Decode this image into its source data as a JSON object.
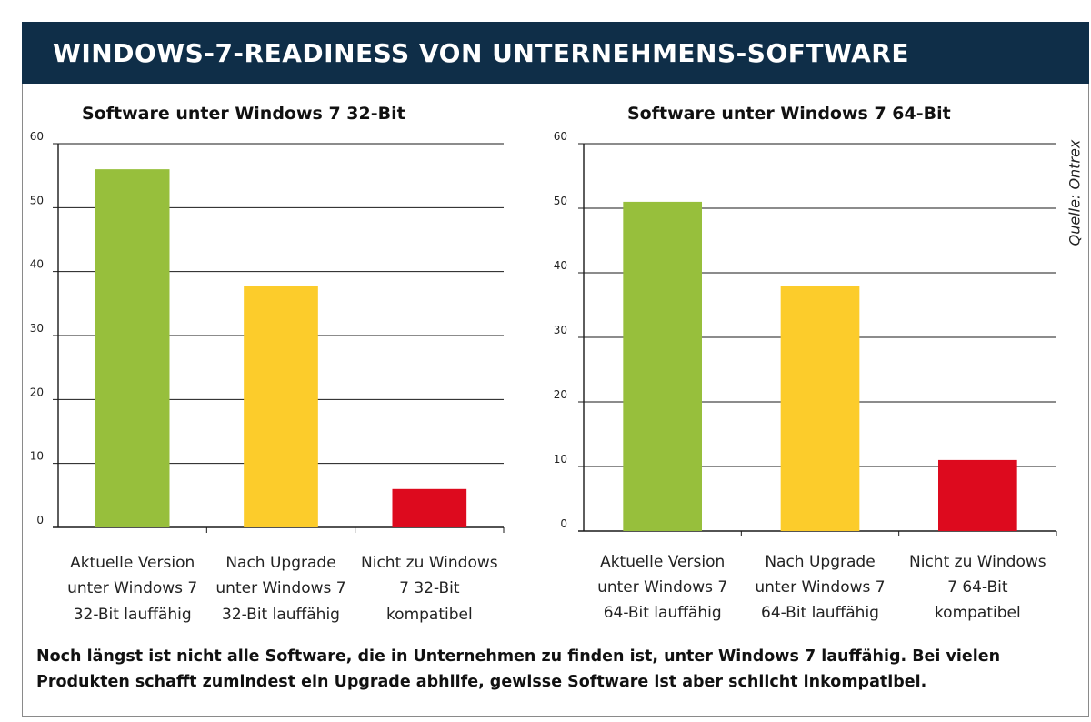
{
  "header": {
    "title": "WINDOWS-7-READINESS VON UNTERNEHMENS-SOFTWARE"
  },
  "source": "Quelle: Ontrex",
  "caption": "Noch längst ist nicht alle Software, die in Unternehmen zu finden ist, unter Windows 7 lauffähig. Bei vielen Produkten schafft zumindest ein Upgrade abhilfe, gewisse Software ist aber schlicht inkompatibel.",
  "colors": {
    "header_bg": "#0f2e48",
    "green": "#97bf3c",
    "yellow": "#fccc2b",
    "red": "#dd0a1e"
  },
  "chart_data": [
    {
      "type": "bar",
      "title": "Software unter Windows 7 32-Bit",
      "categories": [
        [
          "Aktuelle Version",
          "unter Windows 7",
          "32-Bit lauffähig"
        ],
        [
          "Nach Upgrade",
          "unter Windows 7",
          "32-Bit lauffähig"
        ],
        [
          "Nicht zu Windows",
          "7 32-Bit",
          "kompatibel"
        ]
      ],
      "values": [
        56,
        37.7,
        6
      ],
      "bar_colors": [
        "#97bf3c",
        "#fccc2b",
        "#dd0a1e"
      ],
      "ylim": [
        0,
        60
      ],
      "yticks": [
        0,
        10,
        20,
        30,
        40,
        50,
        60
      ],
      "grid": true,
      "xlabel": "",
      "ylabel": ""
    },
    {
      "type": "bar",
      "title": "Software unter Windows 7 64-Bit",
      "categories": [
        [
          "Aktuelle Version",
          "unter Windows 7",
          "64-Bit lauffähig"
        ],
        [
          "Nach Upgrade",
          "unter Windows 7",
          "64-Bit lauffähig"
        ],
        [
          "Nicht zu Windows",
          "7 64-Bit",
          "kompatibel"
        ]
      ],
      "values": [
        51,
        38,
        11
      ],
      "bar_colors": [
        "#97bf3c",
        "#fccc2b",
        "#dd0a1e"
      ],
      "ylim": [
        0,
        60
      ],
      "yticks": [
        0,
        10,
        20,
        30,
        40,
        50,
        60
      ],
      "grid": true,
      "xlabel": "",
      "ylabel": ""
    }
  ]
}
